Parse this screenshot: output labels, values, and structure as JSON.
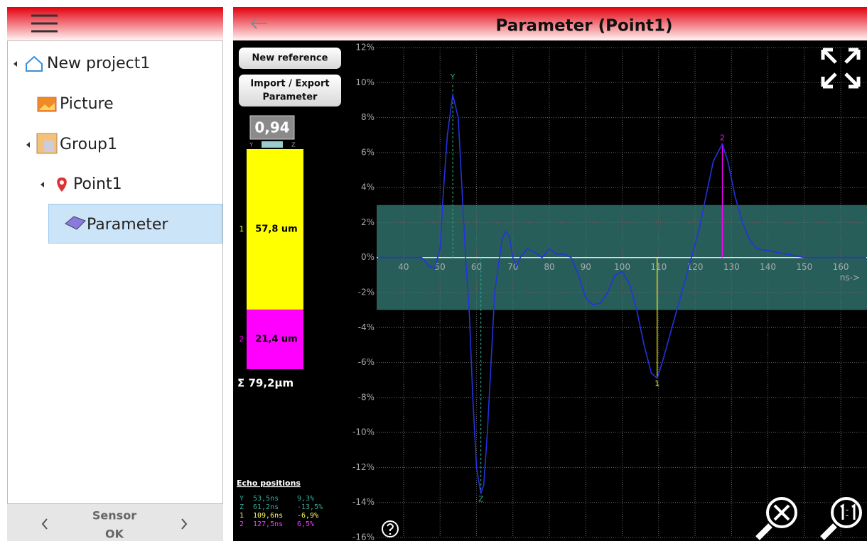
{
  "menu": {
    "tree": [
      "New project1",
      "Picture",
      "Group1",
      "Point1",
      "Parameter"
    ],
    "footer": {
      "label": "Sensor",
      "status": "OK"
    }
  },
  "header": {
    "title": "Parameter (Point1)"
  },
  "buttons": [
    {
      "lines": [
        "New reference"
      ]
    },
    {
      "lines": [
        "Import / Export",
        "Parameter"
      ]
    }
  ],
  "gauge": {
    "value_label": "0,94",
    "left": "Y",
    "right": "Z"
  },
  "layers": {
    "labels": [
      "1",
      "2"
    ],
    "values": [
      57.8,
      21.4
    ],
    "value_labels": [
      "57,8 um",
      "21,4 um"
    ],
    "colors": [
      "#ffff00",
      "#ff00ff"
    ],
    "total_label": "Σ 79,2μm"
  },
  "echo_positions": {
    "title": "Echo positions",
    "rows": [
      [
        "Y",
        "53,5ns",
        "9,3%"
      ],
      [
        "Z",
        "61,2ns",
        "-13,5%"
      ],
      [
        "1",
        "109,6ns",
        "-6,9%"
      ],
      [
        "2",
        "127,5ns",
        "6,5%"
      ]
    ],
    "colors": [
      "#3aa89a",
      "#3aa89a",
      "#ffff66",
      "#ff33ff"
    ]
  },
  "chart_data": {
    "type": "line",
    "x_label": "ns->",
    "xlim": [
      32.6,
      167.2
    ],
    "ylim": [
      -16,
      12
    ],
    "xticks": [
      40,
      50,
      60,
      70,
      80,
      90,
      100,
      110,
      120,
      130,
      140,
      150,
      160
    ],
    "yticks": [
      {
        "value": 12,
        "label": "12%"
      },
      {
        "value": 10,
        "label": "10%"
      },
      {
        "value": 8,
        "label": "8%"
      },
      {
        "value": 6,
        "label": "6%"
      },
      {
        "value": 4,
        "label": "4%"
      },
      {
        "value": 2,
        "label": "2%"
      },
      {
        "value": 0,
        "label": "0%"
      },
      {
        "value": -2,
        "label": "-2%"
      },
      {
        "value": -4,
        "label": "-4%"
      },
      {
        "value": -6,
        "label": "-6%"
      },
      {
        "value": -8,
        "label": "-8%"
      },
      {
        "value": -10,
        "label": "-10%"
      },
      {
        "value": -12,
        "label": "-12%"
      },
      {
        "value": -14,
        "label": "-14%"
      },
      {
        "value": -16,
        "label": "-16%"
      }
    ],
    "grid": true,
    "tolerance_band": [
      -3,
      3
    ],
    "band_color": "#2f6f6a",
    "series": [
      {
        "color": "#2233dd",
        "x": [
          33,
          40,
          45,
          47,
          48.5,
          50,
          51,
          52,
          53.5,
          55,
          56,
          57,
          58,
          59,
          60,
          61.2,
          62,
          63,
          64,
          65,
          66,
          67,
          68,
          69,
          70,
          71,
          72,
          74,
          76,
          78,
          80,
          82,
          84,
          86,
          88,
          90,
          92,
          94,
          96,
          98,
          100,
          102,
          104,
          106,
          108,
          109.6,
          111,
          113,
          115,
          117,
          119,
          121,
          123,
          125,
          127.5,
          129,
          131,
          133,
          135,
          137,
          140,
          145,
          150,
          160,
          167
        ],
        "values": [
          0,
          0,
          0,
          -0.5,
          -0.6,
          0.5,
          4,
          7,
          9.3,
          8,
          4,
          0,
          -3,
          -8,
          -12,
          -13.5,
          -13,
          -10,
          -6,
          -2,
          -0.5,
          1,
          1.5,
          1.2,
          0,
          -0.5,
          0,
          0.5,
          0.3,
          0,
          0.5,
          0.2,
          0.2,
          0,
          -1,
          -2.3,
          -2.7,
          -2.6,
          -2,
          -1,
          -0.8,
          -1.5,
          -3,
          -5,
          -6.6,
          -6.9,
          -6,
          -4.5,
          -3,
          -1.5,
          0,
          1.5,
          3.5,
          5.5,
          6.5,
          5.5,
          3.5,
          2,
          1,
          0.5,
          0.4,
          0.2,
          0,
          0,
          0
        ]
      }
    ],
    "markers": [
      {
        "label": "Y",
        "x": 53.5,
        "y": 9.3,
        "color": "#2e9e6a",
        "dashed": true
      },
      {
        "label": "Z",
        "x": 61.2,
        "y": -13.5,
        "color": "#2e9e8a",
        "dashed": true
      },
      {
        "label": "1",
        "x": 109.6,
        "y": -6.9,
        "color": "#ffff00",
        "dashed": false
      },
      {
        "label": "2",
        "x": 127.5,
        "y": 6.5,
        "color": "#ff00ff",
        "dashed": false
      }
    ]
  }
}
